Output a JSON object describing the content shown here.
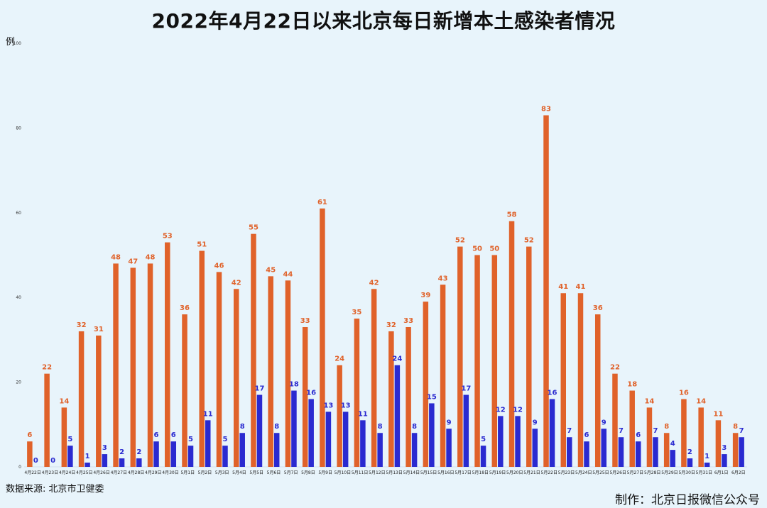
{
  "title": "2022年4月22日以来北京每日新增本土感染者情况",
  "unit_label": "例",
  "source": "数据来源: 北京市卫健委",
  "credit": "制作：北京日报微信公众号",
  "colors": {
    "series1": "#e0622a",
    "series2": "#2a2ad0",
    "background": "#e8f4fb"
  },
  "chart_data": {
    "type": "bar",
    "ylim": [
      0,
      100
    ],
    "yticks": [
      0,
      20,
      40,
      60,
      80,
      100
    ],
    "grid": false,
    "categories": [
      "4月22日",
      "4月23日",
      "4月24日",
      "4月25日",
      "4月26日",
      "4月27日",
      "4月28日",
      "4月29日",
      "4月30日",
      "5月1日",
      "5月2日",
      "5月3日",
      "5月4日",
      "5月5日",
      "5月6日",
      "5月7日",
      "5月8日",
      "5月9日",
      "5月10日",
      "5月11日",
      "5月12日",
      "5月13日",
      "5月14日",
      "5月15日",
      "5月16日",
      "5月17日",
      "5月18日",
      "5月19日",
      "5月20日",
      "5月21日",
      "5月22日",
      "5月23日",
      "5月24日",
      "5月25日",
      "5月26日",
      "5月27日",
      "5月28日",
      "5月29日",
      "5月30日",
      "5月31日",
      "6月1日",
      "6月2日"
    ],
    "series": [
      {
        "values": [
          6,
          22,
          14,
          32,
          31,
          48,
          47,
          48,
          53,
          36,
          51,
          46,
          42,
          55,
          45,
          44,
          33,
          61,
          24,
          35,
          42,
          32,
          33,
          39,
          43,
          52,
          50,
          50,
          58,
          52,
          83,
          41,
          41,
          36,
          22,
          18,
          14,
          8,
          16,
          14,
          11,
          8
        ]
      },
      {
        "values": [
          0,
          0,
          5,
          1,
          3,
          2,
          2,
          6,
          6,
          5,
          11,
          5,
          8,
          17,
          8,
          18,
          16,
          13,
          13,
          11,
          8,
          24,
          8,
          15,
          9,
          17,
          5,
          12,
          12,
          9,
          16,
          7,
          6,
          9,
          7,
          6,
          7,
          4,
          2,
          1,
          3,
          7
        ]
      }
    ]
  }
}
